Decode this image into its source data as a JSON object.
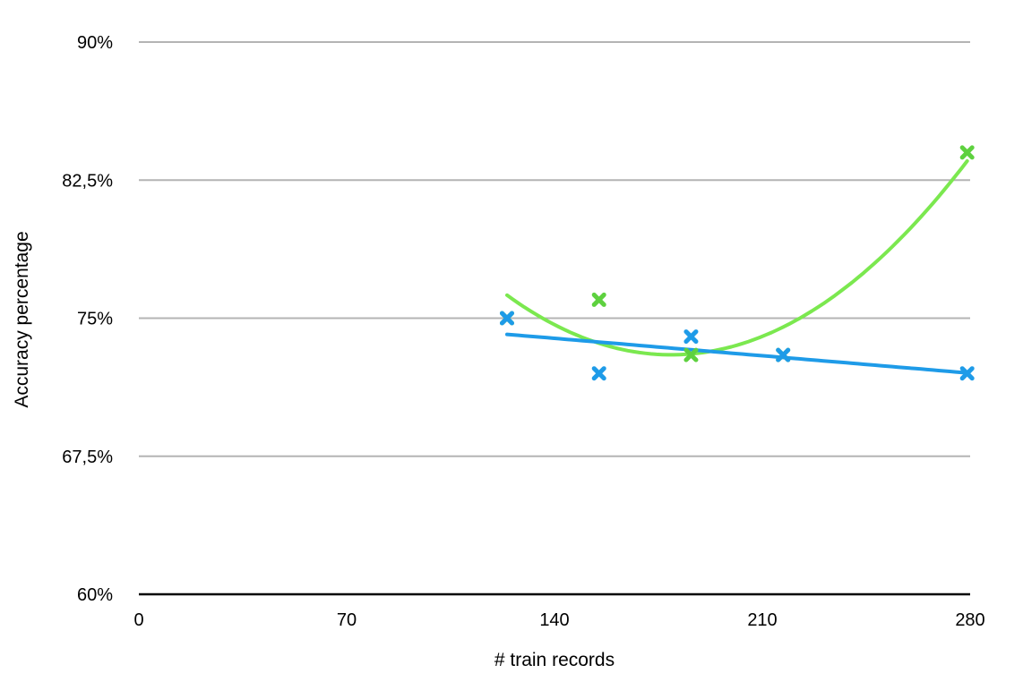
{
  "chart_data": {
    "type": "scatter",
    "xlabel": "# train records",
    "ylabel": "Accuracy percentage",
    "xlim": [
      0,
      280
    ],
    "ylim": [
      60,
      90
    ],
    "x_ticks": [
      0,
      70,
      140,
      210,
      280
    ],
    "x_tick_labels": [
      "0",
      "70",
      "140",
      "210",
      "280"
    ],
    "y_ticks": [
      60,
      67.5,
      75,
      82.5,
      90
    ],
    "y_tick_labels": [
      "60%",
      "67,5%",
      "75%",
      "82,5%",
      "90%"
    ],
    "grid": true,
    "legend": "none",
    "marker": "x",
    "series": [
      {
        "color": "#5ed13f",
        "trend_color": "#7be84f",
        "points": [
          {
            "x": 124,
            "y": 75
          },
          {
            "x": 155,
            "y": 76
          },
          {
            "x": 186,
            "y": 73
          },
          {
            "x": 217,
            "y": 73
          },
          {
            "x": 279,
            "y": 84
          }
        ]
      },
      {
        "color": "#1e9be8",
        "trend_color": "#1e9be8",
        "points": [
          {
            "x": 124,
            "y": 75
          },
          {
            "x": 155,
            "y": 72
          },
          {
            "x": 186,
            "y": 74
          },
          {
            "x": 217,
            "y": 73
          },
          {
            "x": 279,
            "y": 72
          }
        ]
      }
    ]
  }
}
